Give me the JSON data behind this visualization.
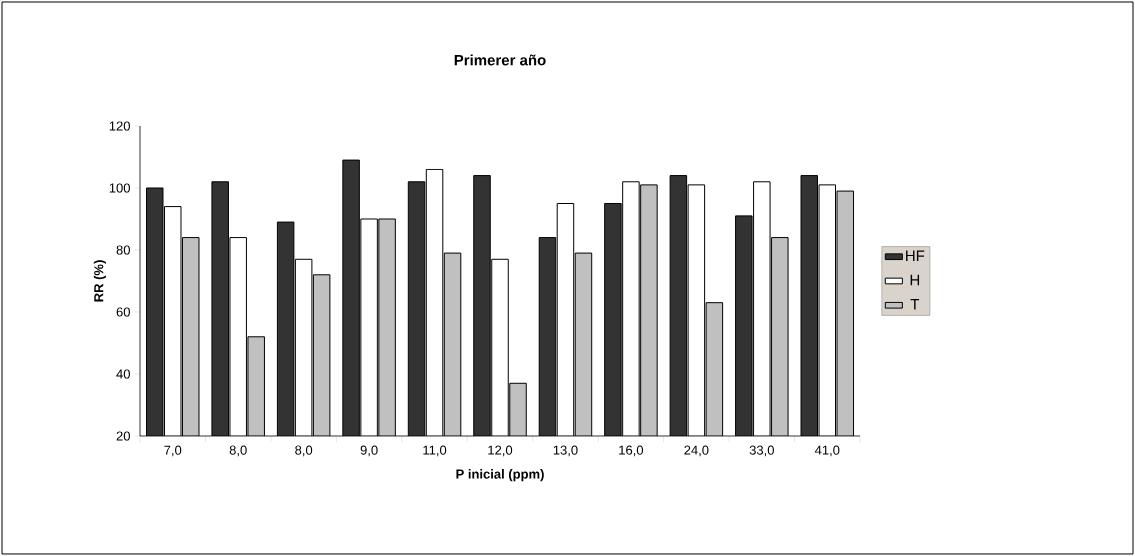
{
  "chart_data": {
    "type": "bar",
    "title": "Primerer año",
    "xlabel": "P inicial (ppm)",
    "ylabel": "RR (%)",
    "categories": [
      "7,0",
      "8,0",
      "8,0",
      "9,0",
      "11,0",
      "12,0",
      "13,0",
      "16,0",
      "24,0",
      "33,0",
      "41,0"
    ],
    "series": [
      {
        "name": "HF",
        "color": "#333333",
        "values": [
          100,
          102,
          89,
          109,
          102,
          104,
          84,
          95,
          104,
          91,
          104
        ]
      },
      {
        "name": "H",
        "color": "#ffffff",
        "values": [
          94,
          84,
          77,
          90,
          106,
          77,
          95,
          102,
          101,
          102,
          101
        ]
      },
      {
        "name": "T",
        "color": "#c0c0c0",
        "values": [
          84,
          52,
          72,
          90,
          79,
          37,
          79,
          101,
          63,
          84,
          99
        ]
      }
    ],
    "ylim": [
      20,
      120
    ],
    "yticks": [
      20,
      40,
      60,
      80,
      100,
      120
    ],
    "legend": "right"
  }
}
